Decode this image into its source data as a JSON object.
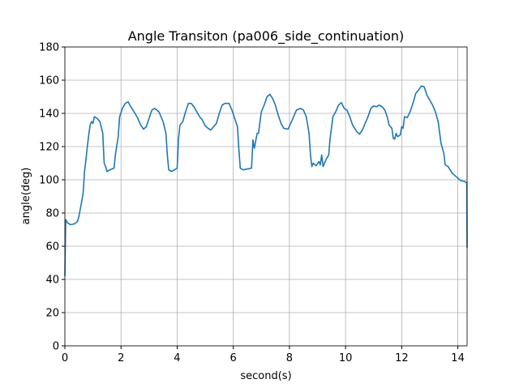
{
  "chart_data": {
    "type": "line",
    "title": "Angle Transiton (pa006_side_continuation)",
    "x_label": "second(s)",
    "y_label": "angle(deg)",
    "x": [
      0,
      0.03,
      0.1,
      0.2,
      0.35,
      0.45,
      0.5,
      0.6,
      0.65,
      0.7,
      0.75,
      0.8,
      0.85,
      0.9,
      0.95,
      1.0,
      1.05,
      1.15,
      1.25,
      1.35,
      1.4,
      1.45,
      1.5,
      1.6,
      1.75,
      1.8,
      1.9,
      1.95,
      2.05,
      2.15,
      2.25,
      2.35,
      2.5,
      2.6,
      2.7,
      2.8,
      2.9,
      3.0,
      3.1,
      3.2,
      3.35,
      3.5,
      3.6,
      3.65,
      3.7,
      3.8,
      3.9,
      4.0,
      4.05,
      4.1,
      4.2,
      4.3,
      4.4,
      4.5,
      4.6,
      4.7,
      4.8,
      4.9,
      5.0,
      5.1,
      5.2,
      5.3,
      5.4,
      5.5,
      5.6,
      5.7,
      5.85,
      5.95,
      6.05,
      6.15,
      6.2,
      6.25,
      6.35,
      6.5,
      6.65,
      6.7,
      6.75,
      6.85,
      6.9,
      6.95,
      7.0,
      7.1,
      7.2,
      7.3,
      7.4,
      7.5,
      7.6,
      7.7,
      7.8,
      7.95,
      8.1,
      8.25,
      8.4,
      8.5,
      8.6,
      8.7,
      8.75,
      8.8,
      8.85,
      8.95,
      9.05,
      9.1,
      9.15,
      9.2,
      9.3,
      9.4,
      9.45,
      9.55,
      9.65,
      9.75,
      9.85,
      9.95,
      10.05,
      10.15,
      10.25,
      10.4,
      10.5,
      10.6,
      10.7,
      10.8,
      10.9,
      11.0,
      11.1,
      11.2,
      11.3,
      11.4,
      11.5,
      11.55,
      11.65,
      11.7,
      11.75,
      11.8,
      11.85,
      11.95,
      12.0,
      12.05,
      12.1,
      12.2,
      12.3,
      12.4,
      12.5,
      12.6,
      12.7,
      12.8,
      12.9,
      13.0,
      13.1,
      13.2,
      13.3,
      13.4,
      13.5,
      13.55,
      13.65,
      13.8,
      14.0,
      14.1,
      14.25,
      14.32,
      14.33
    ],
    "series": [
      {
        "color": "#1f77b4",
        "values": [
          42,
          76,
          74,
          73,
          73.5,
          75,
          78,
          87,
          92,
          105,
          112,
          120,
          127,
          133,
          135,
          134,
          138,
          137,
          135,
          128,
          110,
          108,
          105,
          106,
          107,
          115,
          126,
          138,
          143,
          146,
          147,
          144,
          140,
          137,
          133,
          130.5,
          132,
          137,
          142,
          143,
          141,
          135,
          128,
          115,
          106,
          105,
          106,
          107,
          125,
          133,
          135,
          141,
          146,
          146,
          144,
          141,
          138,
          136,
          132.5,
          131,
          130,
          132,
          134,
          140,
          145,
          146,
          146,
          142,
          137,
          132,
          118,
          107,
          106,
          106.5,
          107,
          124,
          119,
          128,
          128,
          135,
          141,
          145,
          150,
          151.5,
          149,
          145,
          139,
          134,
          131,
          130.5,
          136,
          142,
          143,
          142,
          138,
          128,
          115,
          108,
          110,
          108.5,
          111,
          109,
          115,
          108,
          112,
          115,
          125,
          138,
          141,
          145,
          146.5,
          143,
          142,
          138,
          133,
          129,
          127.5,
          130,
          134,
          138,
          143,
          144.5,
          144,
          145,
          144,
          142,
          137,
          133,
          131,
          125,
          124.5,
          128,
          126,
          127,
          132,
          131,
          138,
          137.5,
          141,
          146,
          152,
          154,
          156.5,
          156,
          151,
          148,
          145,
          141,
          135,
          122,
          116,
          109,
          108,
          104,
          101,
          99.5,
          99,
          98,
          59
        ]
      }
    ],
    "xlim": [
      0,
      14.33
    ],
    "ylim": [
      0,
      180
    ],
    "xticks": [
      0,
      2,
      4,
      6,
      8,
      10,
      12,
      14
    ],
    "yticks": [
      0,
      20,
      40,
      60,
      80,
      100,
      120,
      140,
      160,
      180
    ],
    "grid": true
  }
}
